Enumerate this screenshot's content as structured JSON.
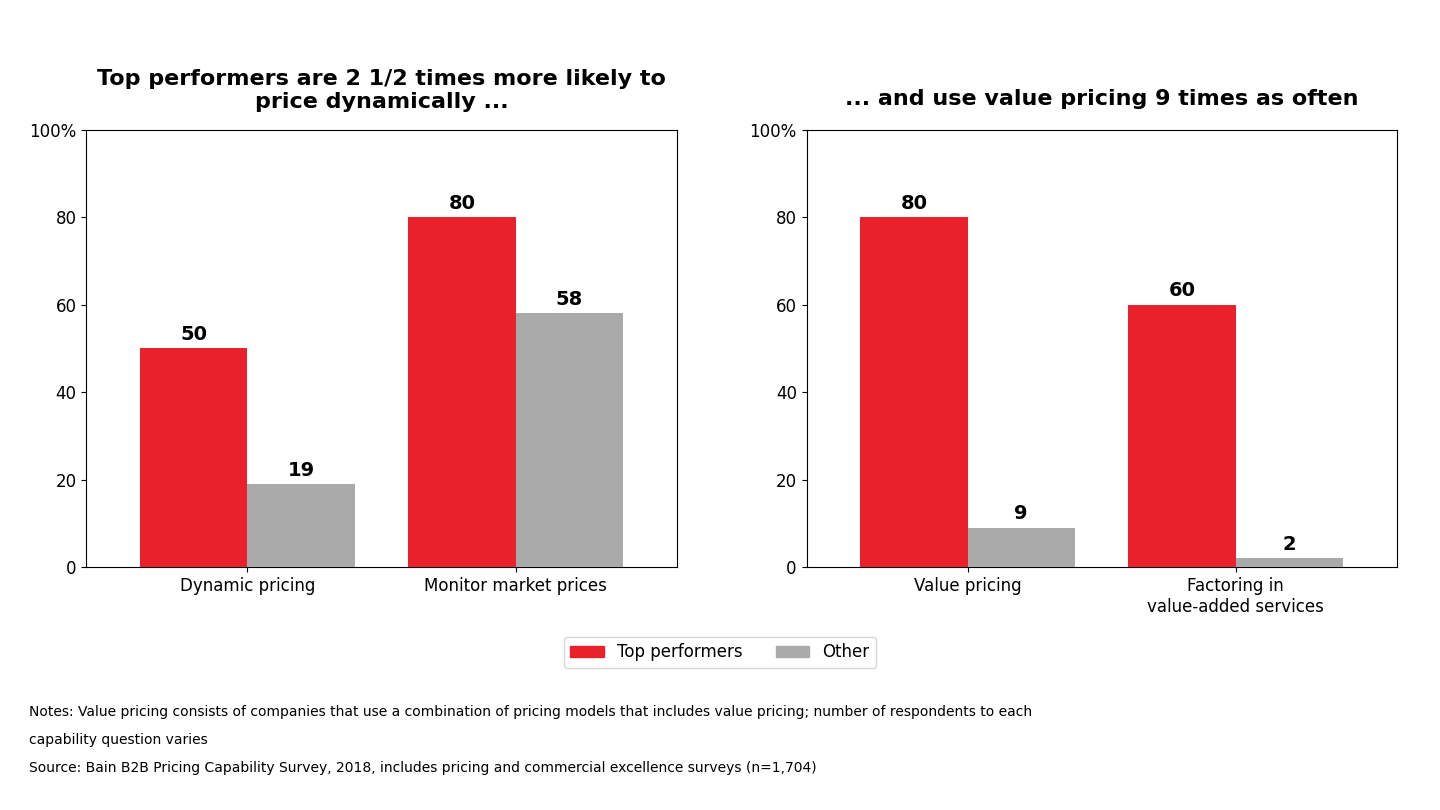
{
  "chart_data": [
    {
      "type": "bar",
      "title": "Top performers are 2 1/2 times more likely to\nprice dynamically ...",
      "categories": [
        "Dynamic pricing",
        "Monitor market prices"
      ],
      "series": [
        {
          "name": "Top performers",
          "color": "#e8212a",
          "values": [
            50,
            80
          ]
        },
        {
          "name": "Other",
          "color": "#aaaaaa",
          "values": [
            19,
            58
          ]
        }
      ],
      "ylim": [
        0,
        100
      ],
      "yticks": [
        0,
        20,
        40,
        60,
        80,
        {
          "value": 100,
          "label": "100%"
        }
      ],
      "grid": false,
      "data_labels": true,
      "legend": "lower center"
    },
    {
      "type": "bar",
      "title": "... and use value pricing 9 times as often",
      "categories": [
        "Value pricing",
        "Factoring in\nvalue-added services"
      ],
      "series": [
        {
          "name": "Top performers",
          "color": "#e8212a",
          "values": [
            80,
            60
          ]
        },
        {
          "name": "Other",
          "color": "#aaaaaa",
          "values": [
            9,
            2
          ]
        }
      ],
      "ylim": [
        0,
        100
      ],
      "yticks": [
        0,
        20,
        40,
        60,
        80,
        {
          "value": 100,
          "label": "100%"
        }
      ],
      "grid": false,
      "data_labels": true
    }
  ],
  "notes": [
    "Notes: Value pricing consists of companies that use a combination of pricing models that includes value pricing; number of respondents to each",
    "capability question varies",
    "Source: Bain B2B Pricing Capability Survey, 2018, includes pricing and commercial excellence surveys (n=1,704)"
  ]
}
